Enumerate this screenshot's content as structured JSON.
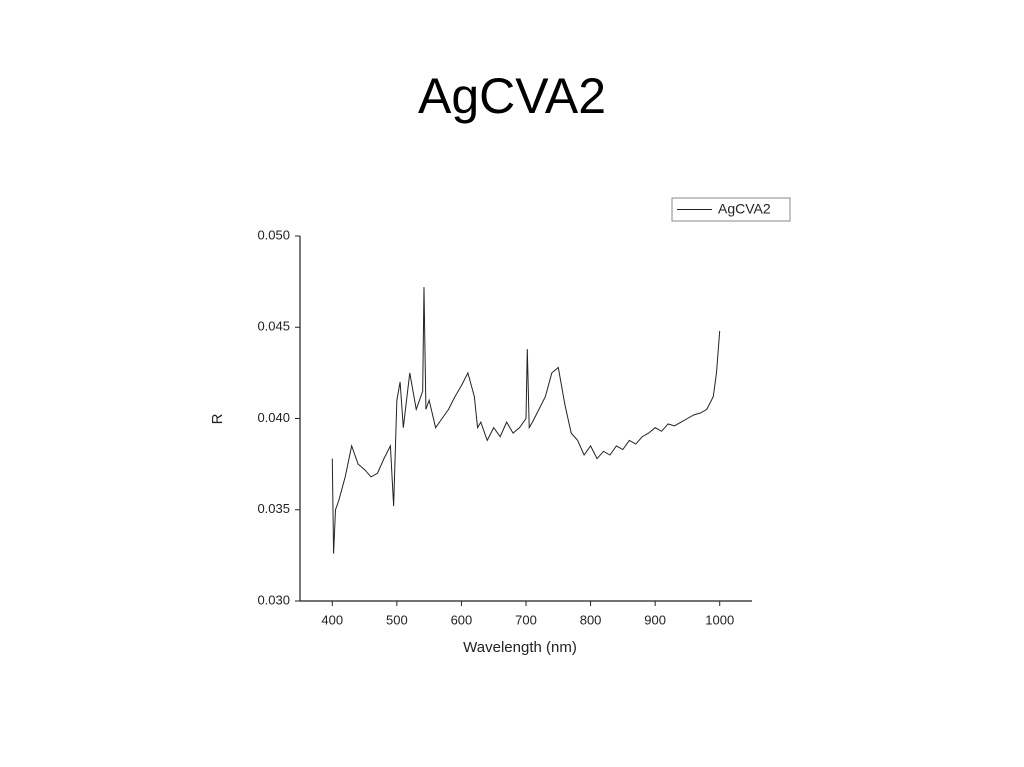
{
  "chart_data": {
    "type": "line",
    "title": "AgCVA2",
    "x_label": "Wavelength (nm)",
    "y_label": "R",
    "x": [
      400,
      402,
      405,
      410,
      420,
      430,
      440,
      450,
      460,
      470,
      480,
      490,
      495,
      500,
      505,
      510,
      520,
      530,
      540,
      542,
      545,
      550,
      560,
      570,
      580,
      590,
      600,
      610,
      620,
      625,
      630,
      640,
      650,
      660,
      670,
      680,
      690,
      700,
      702,
      705,
      710,
      720,
      730,
      740,
      750,
      760,
      770,
      780,
      790,
      800,
      810,
      820,
      830,
      840,
      850,
      860,
      870,
      880,
      890,
      900,
      910,
      920,
      930,
      940,
      950,
      960,
      970,
      980,
      990,
      995,
      1000
    ],
    "series": [
      {
        "name": "AgCVA2",
        "color": "#222222",
        "values": [
          0.0378,
          0.0326,
          0.035,
          0.0355,
          0.0368,
          0.0385,
          0.0375,
          0.0372,
          0.0368,
          0.037,
          0.0378,
          0.0385,
          0.0352,
          0.041,
          0.042,
          0.0395,
          0.0425,
          0.0405,
          0.0415,
          0.0472,
          0.0405,
          0.041,
          0.0395,
          0.04,
          0.0405,
          0.0412,
          0.0418,
          0.0425,
          0.0412,
          0.0395,
          0.0398,
          0.0388,
          0.0395,
          0.039,
          0.0398,
          0.0392,
          0.0395,
          0.04,
          0.0438,
          0.0395,
          0.0398,
          0.0405,
          0.0412,
          0.0425,
          0.0428,
          0.0408,
          0.0392,
          0.0388,
          0.038,
          0.0385,
          0.0378,
          0.0382,
          0.038,
          0.0385,
          0.0383,
          0.0388,
          0.0386,
          0.039,
          0.0392,
          0.0395,
          0.0393,
          0.0397,
          0.0396,
          0.0398,
          0.04,
          0.0402,
          0.0403,
          0.0405,
          0.0412,
          0.0425,
          0.0448
        ]
      }
    ],
    "xlim": [
      350,
      1050
    ],
    "ylim": [
      0.03,
      0.05
    ],
    "xticks": [
      400,
      500,
      600,
      700,
      800,
      900,
      1000
    ],
    "yticks": [
      {
        "value": 0.03,
        "label": "0.030"
      },
      0.035,
      {
        "value": 0.04,
        "label": "0.040"
      },
      0.045,
      {
        "value": 0.05,
        "label": "0.050"
      }
    ],
    "grid": false,
    "legend": "upper right"
  }
}
